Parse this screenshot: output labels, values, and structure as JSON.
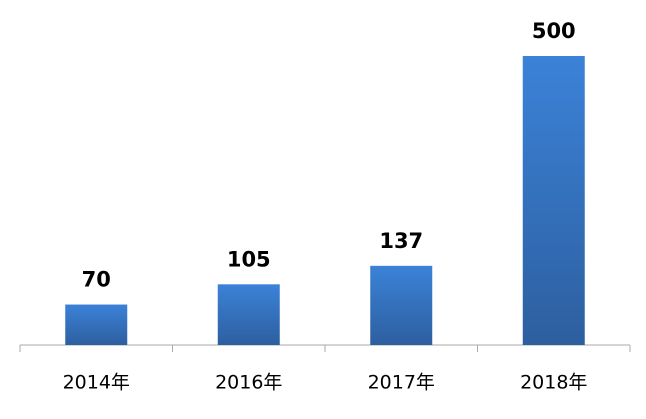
{
  "chart_data": {
    "type": "bar",
    "categories": [
      "2014年",
      "2016年",
      "2017年",
      "2018年"
    ],
    "values": [
      70,
      105,
      137,
      500
    ],
    "color": "#3a7fd5"
  }
}
